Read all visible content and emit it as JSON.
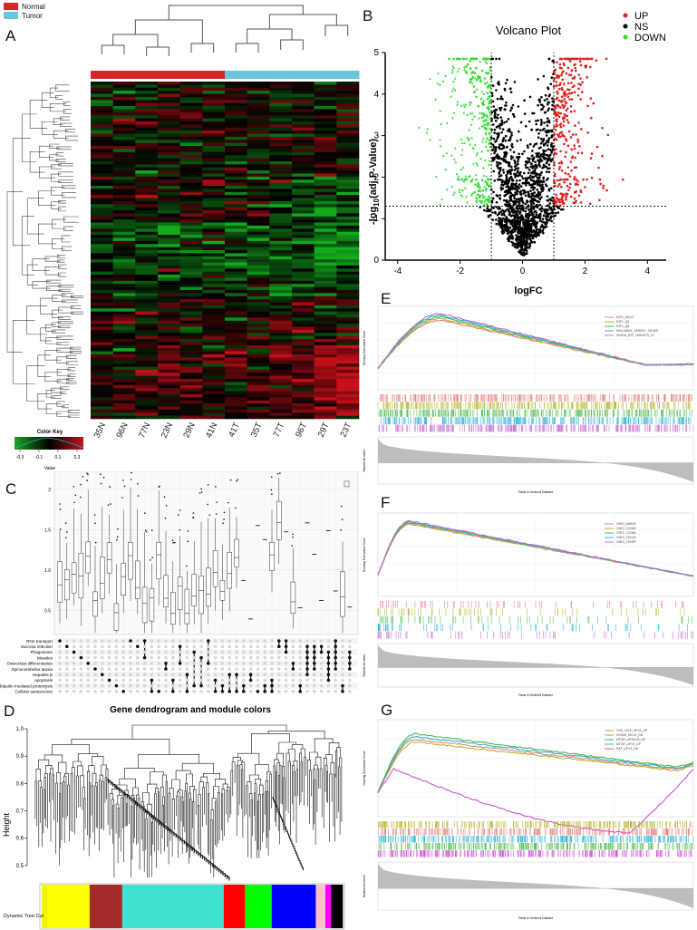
{
  "panels": {
    "a": "A",
    "b": "B",
    "c": "C",
    "d": "D",
    "e": "E",
    "f": "F",
    "g": "G"
  },
  "heatmap": {
    "legend": [
      {
        "label": "Normal",
        "color": "#d62728"
      },
      {
        "label": "Tumor",
        "color": "#6cc5d8"
      }
    ],
    "samples": [
      "35N",
      "96N",
      "77N",
      "23N",
      "29N",
      "41N",
      "41T",
      "35T",
      "77T",
      "96T",
      "29T",
      "23T"
    ],
    "group_colors": {
      "N": "#d62728",
      "T": "#6cc5d8"
    },
    "color_key": {
      "title": "Color Key",
      "ticks": [
        "-0.3",
        "-0.1",
        "0.1",
        "0.3"
      ],
      "xlabel": "Value"
    }
  },
  "volcano": {
    "title": "Volcano Plot",
    "xlabel": "logFC",
    "ylabel_pre": "-log",
    "ylabel_sub": "10",
    "ylabel_post": "(adj.P-Value)",
    "xticks": [
      "-4",
      "-2",
      "0",
      "2",
      "4"
    ],
    "yticks": [
      "0",
      "1",
      "2",
      "3",
      "4",
      "5"
    ],
    "legend": [
      {
        "label": "UP",
        "color": "#e02020"
      },
      {
        "label": "NS",
        "color": "#000000"
      },
      {
        "label": "DOWN",
        "color": "#33dd33"
      }
    ]
  },
  "upset": {
    "yticks": [
      "2",
      "1.5",
      "1.0",
      "0.5"
    ],
    "sets": [
      "RNA transport",
      "Vaccinia infection",
      "Phagosome",
      "Measles",
      "Osteoclast differentiation",
      "Spinocerebellar ataxia",
      "Hepatitis B",
      "Apoptosis",
      "Ubiquitin mediated proteolysis",
      "Cellular senescence"
    ]
  },
  "dendro": {
    "title": "Gene dendrogram and module colors",
    "ylabel": "Height",
    "yticks": [
      "1.0",
      "0.9",
      "0.8",
      "0.7",
      "0.6",
      "0.5"
    ],
    "row_label": "Dynamic Tree Cut",
    "modules": [
      {
        "color": "#f2f203",
        "w": 0.03
      },
      {
        "color": "#ffff00",
        "w": 0.22
      },
      {
        "color": "#a52a2a",
        "w": 0.17
      },
      {
        "color": "#40e0d0",
        "w": 0.53
      },
      {
        "color": "#ff0000",
        "w": 0.11
      },
      {
        "color": "#00ff00",
        "w": 0.14
      },
      {
        "color": "#0000ff",
        "w": 0.23
      },
      {
        "color": "#ffc0cb",
        "w": 0.05
      },
      {
        "color": "#ff00ff",
        "w": 0.03
      },
      {
        "color": "#000000",
        "w": 0.06
      }
    ]
  },
  "gsea": [
    {
      "legend": [
        "E2F1_DN.V1",
        "E2F1_Q3",
        "E2F1_Q6",
        "HALLMARK_TARGET_GENES",
        "ISHIDA_E2F_TARGETS_V1"
      ],
      "colors": [
        "#e58080",
        "#b5b530",
        "#4cb84c",
        "#2ab0d0",
        "#c56ad0"
      ],
      "ylabel": "Running Enrichment Score",
      "ylabel2": "Ranked list metric",
      "xlabel": "Rank in Ordered Dataset"
    },
    {
      "legend": [
        "GNF2_BUB1B",
        "GNF2_CCNA2",
        "GNF2_CCNB1",
        "GNF2_CDC20",
        "GNF2_CENPF"
      ],
      "colors": [
        "#e58080",
        "#b5b530",
        "#4cb84c",
        "#2ab0d0",
        "#c56ad0"
      ],
      "ylabel": "Running Enrichment Score",
      "ylabel2": "Ranked list metric",
      "xlabel": "Rank in Ordered Dataset"
    },
    {
      "legend": [
        "CSR_LATE_UP.V1_UP",
        "HOXA9_DN.V1_DN",
        "MTOR_UP.N4.V1_UP",
        "MTOR_UP.V1_UP",
        "RAF_UP.V1_DN"
      ],
      "colors": [
        "#b5b530",
        "#e58080",
        "#2ab0d0",
        "#4cb84c",
        "#d050d0"
      ],
      "ylabel": "Running Enrichment Score",
      "ylabel2": "Ranked list metric",
      "xlabel": "Rank in Ordered Dataset"
    }
  ]
}
